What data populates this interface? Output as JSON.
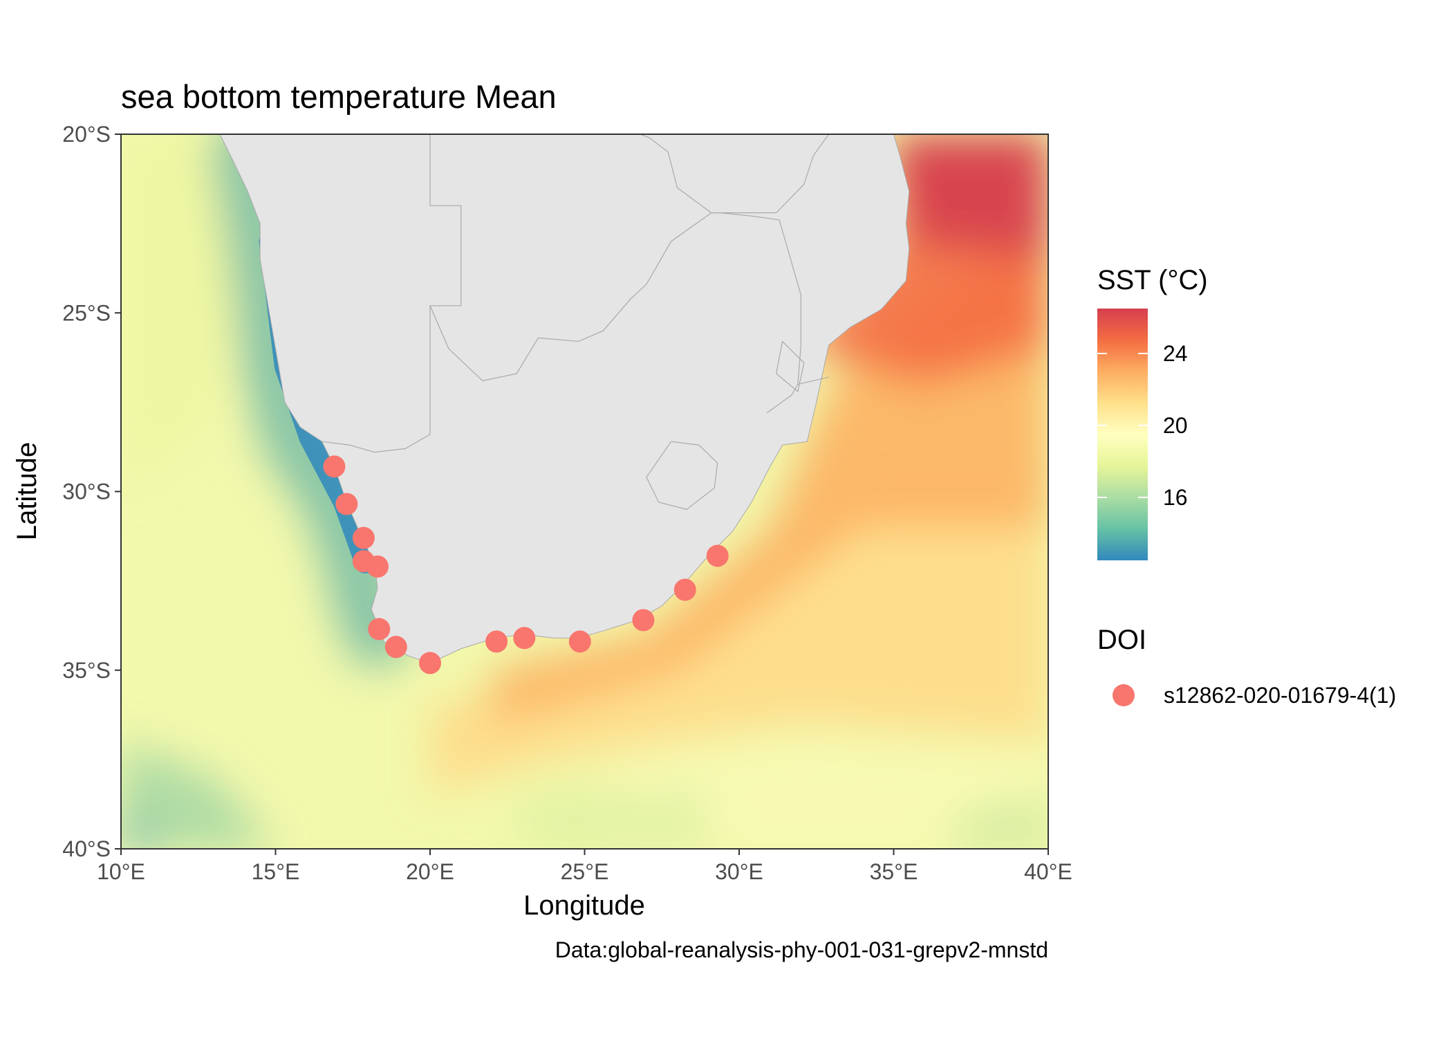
{
  "title": "sea bottom temperature Mean",
  "caption": "Data:global-reanalysis-phy-001-031-grepv2-mnstd",
  "colors": {
    "land": "#e5e5e5",
    "border": "#a9a9a9",
    "point": "#f8766d",
    "panel_border": "#333333",
    "scale": [
      "#3288bd",
      "#66c2a5",
      "#abdda4",
      "#e6f598",
      "#ffffbf",
      "#fee08b",
      "#fdae61",
      "#f46d43",
      "#d53e4f"
    ]
  },
  "chart_data": {
    "type": "map",
    "xlabel": "Longitude",
    "ylabel": "Latitude",
    "xlim": [
      10,
      40
    ],
    "ylim": [
      -40,
      -20
    ],
    "x_ticks": [
      {
        "value": 10,
        "label": "10°E"
      },
      {
        "value": 15,
        "label": "15°E"
      },
      {
        "value": 20,
        "label": "20°E"
      },
      {
        "value": 25,
        "label": "25°E"
      },
      {
        "value": 30,
        "label": "30°E"
      },
      {
        "value": 35,
        "label": "35°E"
      },
      {
        "value": 40,
        "label": "40°E"
      }
    ],
    "y_ticks": [
      {
        "value": -20,
        "label": "20°S"
      },
      {
        "value": -25,
        "label": "25°S"
      },
      {
        "value": -30,
        "label": "30°S"
      },
      {
        "value": -35,
        "label": "35°S"
      },
      {
        "value": -40,
        "label": "40°S"
      }
    ],
    "grid": false,
    "legend_position": "right",
    "fill_legend": {
      "title": "SST (°C)",
      "range": [
        12.5,
        26.5
      ],
      "breaks": [
        {
          "value": 16,
          "label": "16"
        },
        {
          "value": 20,
          "label": "20"
        },
        {
          "value": 24,
          "label": "24"
        }
      ]
    },
    "point_legend": {
      "title": "DOI",
      "series": [
        {
          "name": "s12862-020-01679-4(1)"
        }
      ]
    },
    "points": [
      {
        "lon": 16.9,
        "lat": -29.3
      },
      {
        "lon": 17.3,
        "lat": -30.35
      },
      {
        "lon": 17.85,
        "lat": -31.3
      },
      {
        "lon": 17.85,
        "lat": -31.95
      },
      {
        "lon": 18.3,
        "lat": -32.1
      },
      {
        "lon": 18.35,
        "lat": -33.85
      },
      {
        "lon": 18.9,
        "lat": -34.35
      },
      {
        "lon": 20.0,
        "lat": -34.8
      },
      {
        "lon": 22.15,
        "lat": -34.2
      },
      {
        "lon": 23.05,
        "lat": -34.1
      },
      {
        "lon": 24.85,
        "lat": -34.2
      },
      {
        "lon": 26.9,
        "lat": -33.6
      },
      {
        "lon": 28.25,
        "lat": -32.75
      },
      {
        "lon": 29.3,
        "lat": -31.8
      }
    ]
  }
}
